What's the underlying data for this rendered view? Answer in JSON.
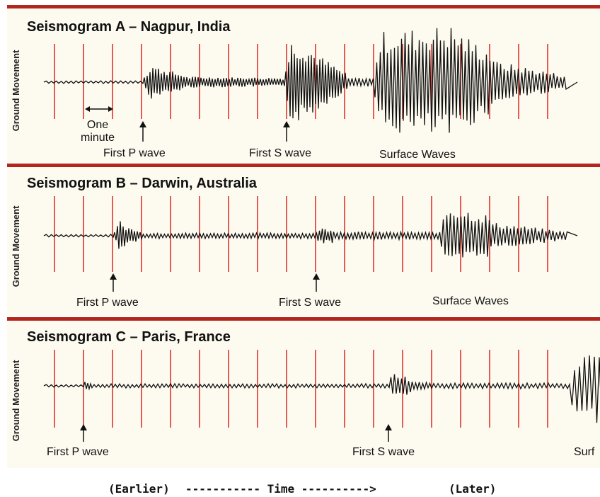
{
  "panels": [
    {
      "title": "Seismogram A – Nagpur, India",
      "y_axis_label": "Ground Movement",
      "arrow_labels": [
        {
          "text": "First P wave"
        },
        {
          "text": "First S wave"
        },
        {
          "text": "Surface Waves"
        }
      ],
      "scale_label": [
        "One",
        "minute"
      ]
    },
    {
      "title": "Seismogram B – Darwin, Australia",
      "y_axis_label": "Ground Movement",
      "arrow_labels": [
        {
          "text": "First P wave"
        },
        {
          "text": "First S wave"
        },
        {
          "text": "Surface Waves"
        }
      ]
    },
    {
      "title": "Seismogram C – Paris, France",
      "y_axis_label": "Ground Movement",
      "arrow_labels": [
        {
          "text": "First P wave"
        },
        {
          "text": "First S wave"
        },
        {
          "text": "Surf"
        }
      ]
    }
  ],
  "footer": {
    "earlier": "(Earlier)",
    "time": "----------- Time ---------->",
    "later": "(Later)"
  },
  "colors": {
    "panel_background": "#fdfbf0",
    "panel_border": "#b3261e",
    "minute_line": "#e0322a",
    "trace": "#111111"
  }
}
